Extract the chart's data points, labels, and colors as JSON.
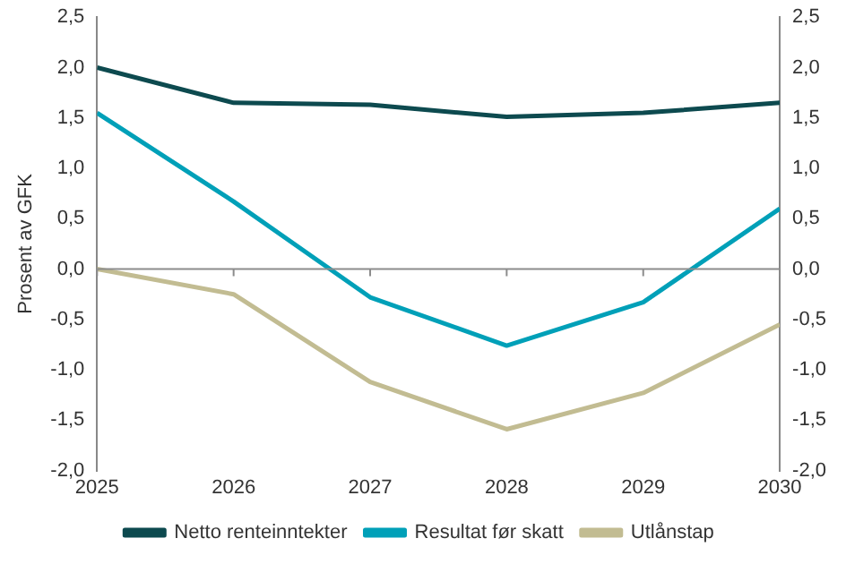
{
  "chart_data": {
    "type": "line",
    "ylabel": "Prosent av GFK",
    "x": [
      2025,
      2026,
      2027,
      2028,
      2029,
      2030
    ],
    "xlim": [
      2025,
      2030
    ],
    "xticks": [
      2025,
      2026,
      2027,
      2028,
      2029,
      2030
    ],
    "ylim": [
      -2.0,
      2.5
    ],
    "yticks": [
      {
        "value": -2.0,
        "label": "-2,0"
      },
      {
        "value": -1.5,
        "label": "-1,5"
      },
      {
        "value": -1.0,
        "label": "-1,0"
      },
      {
        "value": -0.5,
        "label": "-0,5"
      },
      {
        "value": 0,
        "label": "0,0"
      },
      {
        "value": 0.5,
        "label": "0,5"
      },
      {
        "value": 1.0,
        "label": "1,0"
      },
      {
        "value": 1.5,
        "label": "1,5"
      },
      {
        "value": 2.0,
        "label": "2,0"
      },
      {
        "value": 2.5,
        "label": "2,5"
      }
    ],
    "y2lim": [
      -2.0,
      2.5
    ],
    "y2ticks": [
      {
        "value": -2.0,
        "label": "-2,0"
      },
      {
        "value": -1.5,
        "label": "-1,5"
      },
      {
        "value": -1.0,
        "label": "-1,0"
      },
      {
        "value": -0.5,
        "label": "-0,5"
      },
      {
        "value": 0,
        "label": "0,0"
      },
      {
        "value": 0.5,
        "label": "0,5"
      },
      {
        "value": 1.0,
        "label": "1,0"
      },
      {
        "value": 1.5,
        "label": "1,5"
      },
      {
        "value": 2.0,
        "label": "2,0"
      },
      {
        "value": 2.5,
        "label": "2,5"
      }
    ],
    "series": [
      {
        "name": "Netto renteinntekter",
        "color": "#0d4a4f",
        "values": [
          2.0,
          1.65,
          1.63,
          1.51,
          1.55,
          1.65
        ]
      },
      {
        "name": "Resultat før skatt",
        "color": "#00a0b8",
        "values": [
          1.55,
          0.67,
          -0.28,
          -0.76,
          -0.33,
          0.6
        ]
      },
      {
        "name": "Utlånstap",
        "color": "#c2bc92",
        "values": [
          0,
          -0.25,
          -1.12,
          -1.59,
          -1.23,
          -0.55
        ]
      }
    ],
    "ref_lines": [
      {
        "axis": "y",
        "value": 0,
        "color": "#8c8c8c"
      }
    ],
    "grid": false,
    "legend": "bottom",
    "marker": "none",
    "line_style": "solid"
  }
}
